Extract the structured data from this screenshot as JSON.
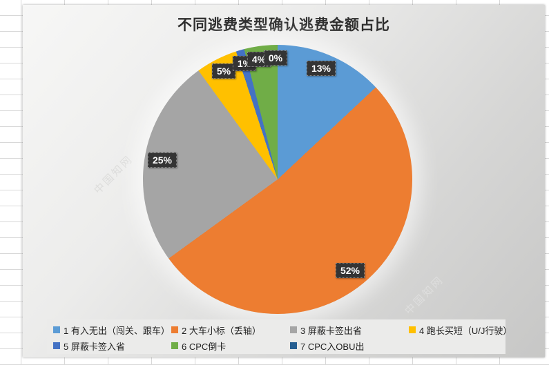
{
  "chart": {
    "title": "不同逃费类型确认逃费金额占比",
    "chart_data": {
      "type": "pie",
      "title": "不同逃费类型确认逃费金额占比",
      "categories": [
        "1 有入无出（闯关、跟车）",
        "2 大车小标（丢轴）",
        "3 屏蔽卡签出省",
        "4 跑长买短（U/J行驶）",
        "5 屏蔽卡签入省",
        "6 CPC倒卡",
        "7 CPC入OBU出"
      ],
      "values": [
        13,
        52,
        25,
        5,
        1,
        4,
        0
      ],
      "unit": "%",
      "colors": [
        "#5B9BD5",
        "#ED7D31",
        "#A5A5A5",
        "#FFC000",
        "#4472C4",
        "#70AD47",
        "#255E91"
      ],
      "data_labels": [
        "13%",
        "52%",
        "25%",
        "5%",
        "1%",
        "4%",
        "0%"
      ],
      "start_angle_deg": 0,
      "direction": "clockwise",
      "legend_position": "bottom",
      "label_style": "dark-box-white-text"
    }
  },
  "watermark": {
    "text": "中国知网"
  }
}
